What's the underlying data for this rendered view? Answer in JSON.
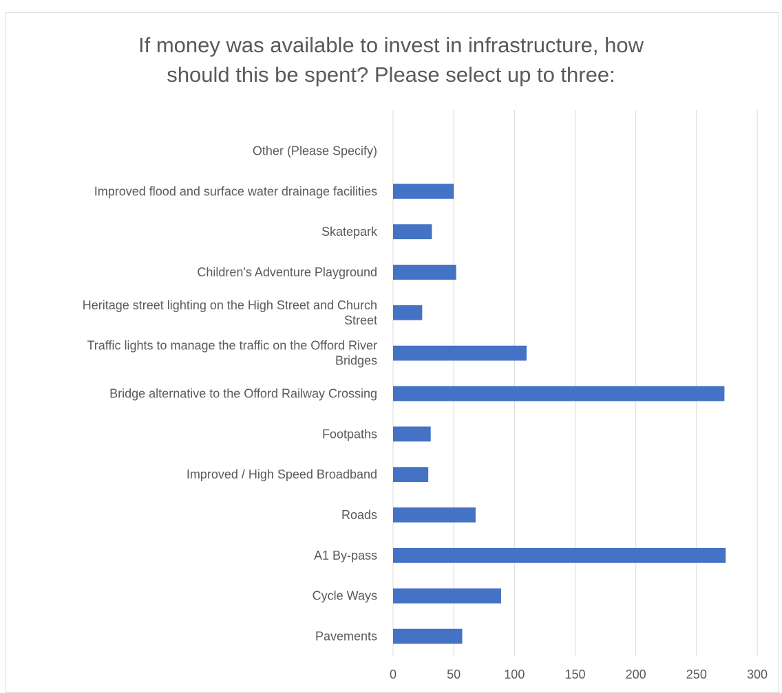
{
  "chart_data": {
    "type": "bar",
    "orientation": "horizontal",
    "title_lines": [
      "If money was available to invest in infrastructure, how",
      "should this be spent? Please select up to three:"
    ],
    "categories": [
      "Other (Please Specify)",
      "Improved flood and surface water drainage facilities",
      "Skatepark",
      "Children's Adventure Playground",
      "Heritage street lighting on the High Street and Church Street",
      "Traffic lights to manage the traffic on the Offord River Bridges",
      "Bridge alternative to the Offord Railway Crossing",
      "Footpaths",
      "Improved / High Speed Broadband",
      "Roads",
      "A1  By-pass",
      "Cycle Ways",
      "Pavements"
    ],
    "category_label_lines": [
      [
        "Other (Please Specify)"
      ],
      [
        "Improved flood and surface water drainage facilities"
      ],
      [
        "Skatepark"
      ],
      [
        "Children's Adventure Playground"
      ],
      [
        "Heritage street lighting on the High Street and Church",
        "Street"
      ],
      [
        "Traffic lights to manage the traffic on the Offord River",
        "Bridges"
      ],
      [
        "Bridge alternative to the Offord Railway Crossing"
      ],
      [
        "Footpaths"
      ],
      [
        "Improved / High Speed Broadband"
      ],
      [
        "Roads"
      ],
      [
        "A1  By-pass"
      ],
      [
        "Cycle Ways"
      ],
      [
        "Pavements"
      ]
    ],
    "values": [
      0,
      50,
      32,
      52,
      24,
      110,
      273,
      31,
      29,
      68,
      274,
      89,
      57
    ],
    "xlim": [
      0,
      300
    ],
    "x_ticks": [
      0,
      50,
      100,
      150,
      200,
      250,
      300
    ],
    "grid": "vertical",
    "legend": "none",
    "bar_color": "#4472c4",
    "grid_color": "#d9d9d9",
    "text_color": "#595959"
  }
}
